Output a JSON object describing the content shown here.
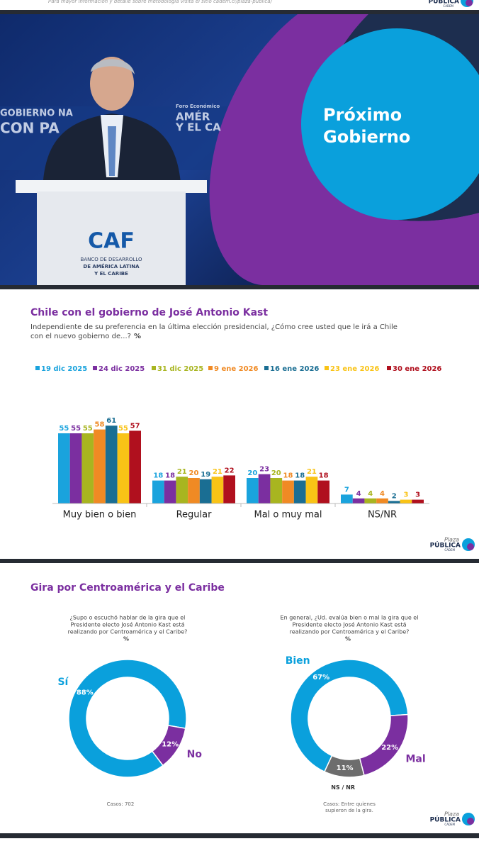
{
  "header": {
    "note": "Para mayor información y detalle sobre metodología visita el sitio cadem.cl/plaza-publica/"
  },
  "logo": {
    "top": "Plaza",
    "main": "PÚBLICA",
    "sub": "CADEM"
  },
  "banner": {
    "title_lines": [
      "Próximo",
      "Gobierno"
    ],
    "photo_texts": [
      "GOBIERNO NA",
      "CON PA",
      "Foro Económico",
      "AMÉR",
      "Y EL CA"
    ],
    "podium": {
      "brand": "CAF",
      "lines": [
        "BANCO DE DESARROLLO",
        "DE AMÉRICA LATINA",
        "Y EL CARIBE"
      ]
    }
  },
  "chart_data": [
    {
      "type": "bar",
      "title": "Chile con el gobierno de José Antonio Kast",
      "subtitle": [
        "Independiente de su preferencia en la última elección presidencial, ¿Cómo cree usted que le irá a Chile",
        "con el nuevo gobierno de...?"
      ],
      "unit": "%",
      "categories": [
        "Muy bien o bien",
        "Regular",
        "Mal o muy mal",
        "NS/NR"
      ],
      "ylim": [
        0,
        100
      ],
      "series": [
        {
          "name": "19 dic 2025",
          "color": "#1aa3dd",
          "values": [
            55,
            18,
            20,
            7
          ]
        },
        {
          "name": "24 dic 2025",
          "color": "#7b2fa0",
          "values": [
            55,
            18,
            23,
            4
          ]
        },
        {
          "name": "31 dic 2025",
          "color": "#a8b520",
          "values": [
            55,
            21,
            20,
            4
          ]
        },
        {
          "name": "9 ene 2026",
          "color": "#f08a24",
          "values": [
            58,
            20,
            18,
            4
          ]
        },
        {
          "name": "16 ene 2026",
          "color": "#1a6e93",
          "values": [
            61,
            19,
            18,
            2
          ]
        },
        {
          "name": "23 ene 2026",
          "color": "#f9c316",
          "values": [
            55,
            21,
            21,
            3
          ]
        },
        {
          "name": "30 ene 2026",
          "color": "#b0101e",
          "values": [
            57,
            22,
            18,
            3
          ]
        }
      ]
    },
    {
      "type": "pie",
      "donut": true,
      "title": "Gira por Centroamérica y el Caribe",
      "question": [
        "¿Supo o escuchó hablar de la gira que el",
        "Presidente electo José Antonio Kast está",
        "realizando por Centroamérica y el Caribe?"
      ],
      "unit": "%",
      "categories": [
        "Sí",
        "No"
      ],
      "values": [
        88,
        12
      ],
      "value_labels": [
        "88%",
        "12%"
      ],
      "colors": [
        "#0aa0dc",
        "#7b2fa0"
      ],
      "note": [
        "Casos: 702"
      ]
    },
    {
      "type": "pie",
      "donut": true,
      "question": [
        "En general, ¿Ud. evalúa bien o mal la gira que el",
        "Presidente electo José Antonio Kast está",
        "realizando por Centroamérica y el Caribe?"
      ],
      "unit": "%",
      "categories": [
        "Bien",
        "Mal",
        "NS / NR"
      ],
      "values": [
        67,
        22,
        11
      ],
      "value_labels": [
        "67%",
        "22%",
        "11%"
      ],
      "colors": [
        "#0aa0dc",
        "#7b2fa0",
        "#6d6d6d"
      ],
      "note": [
        "Casos: Entre quienes",
        "supieron de la gira."
      ]
    }
  ]
}
